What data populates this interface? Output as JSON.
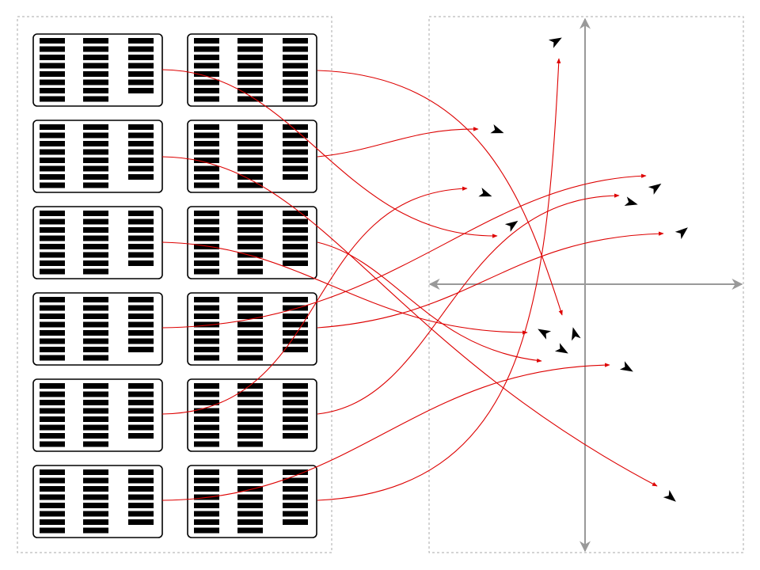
{
  "diagram": {
    "colors": {
      "background": "#ffffff",
      "panel_border": "#aaaaaa",
      "card_border": "#000000",
      "bar": "#000000",
      "axis": "#999999",
      "connector": "#dd0000",
      "marker": "#000000"
    },
    "icons": {
      "panel": "dashed-rectangle",
      "card": "rounded-rectangle",
      "bar": "filled-rectangle",
      "axis": "double-headed-arrow",
      "connector": "curved-arrow",
      "marker": "arrowhead"
    },
    "cards": [
      {
        "id": "r1c1",
        "bars": [
          8,
          8,
          7
        ]
      },
      {
        "id": "r1c2",
        "bars": [
          8,
          8,
          8
        ]
      },
      {
        "id": "r2c1",
        "bars": [
          8,
          8,
          7
        ]
      },
      {
        "id": "r2c2",
        "bars": [
          8,
          8,
          7
        ]
      },
      {
        "id": "r3c1",
        "bars": [
          8,
          8,
          7
        ]
      },
      {
        "id": "r3c2",
        "bars": [
          8,
          8,
          7
        ]
      },
      {
        "id": "r4c1",
        "bars": [
          8,
          8,
          7
        ]
      },
      {
        "id": "r4c2",
        "bars": [
          8,
          8,
          7
        ]
      },
      {
        "id": "r5c1",
        "bars": [
          8,
          8,
          7
        ]
      },
      {
        "id": "r5c2",
        "bars": [
          8,
          8,
          7
        ]
      },
      {
        "id": "r6c1",
        "bars": [
          8,
          8,
          7
        ]
      },
      {
        "id": "r6c2",
        "bars": [
          8,
          8,
          7
        ]
      }
    ]
  }
}
